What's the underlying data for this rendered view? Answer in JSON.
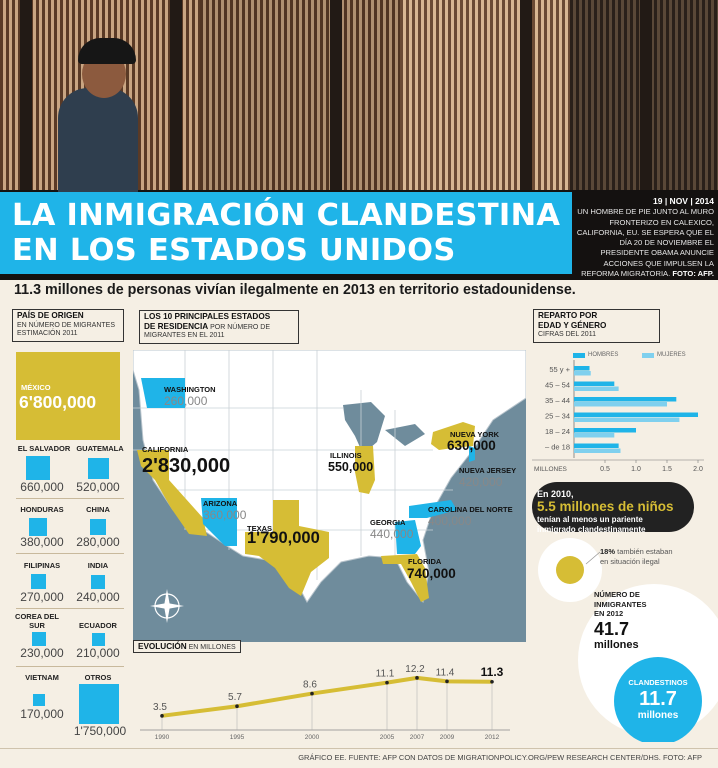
{
  "hero": {
    "title_line1": "LA INMIGRACIÓN CLANDESTINA",
    "title_line2": "EN LOS ESTADOS UNIDOS",
    "date": "19 | NOV | 2014",
    "caption": "UN HOMBRE DE PIE JUNTO AL MURO FRONTERIZO EN CALEXICO, CALIFORNIA, EU. SE ESPERA QUE EL DÍA 20 DE NOVIEMBRE EL PRESIDENTE OBAMA ANUNCIE ACCIONES QUE IMPULSEN LA REFORMA MIGRATORIA.",
    "caption_credit": "FOTO: AFP."
  },
  "headline": "11.3 millones de personas vivían ilegalmente en 2013 en territorio estadounidense.",
  "origin": {
    "title": "PAÍS DE ORIGEN",
    "subtitle_1": "EN NÚMERO DE MIGRANTES",
    "subtitle_2": "ESTIMACIÓN 2011",
    "mexico_label": "MÉXICO",
    "mexico_value": "6'800,000",
    "countries": [
      {
        "name": "EL SALVADOR",
        "value": "660,000"
      },
      {
        "name": "GUATEMALA",
        "value": "520,000"
      },
      {
        "name": "HONDURAS",
        "value": "380,000"
      },
      {
        "name": "CHINA",
        "value": "280,000"
      },
      {
        "name": "FILIPINAS",
        "value": "270,000"
      },
      {
        "name": "INDIA",
        "value": "240,000"
      },
      {
        "name": "COREA DEL SUR",
        "value": "230,000"
      },
      {
        "name": "ECUADOR",
        "value": "210,000"
      },
      {
        "name": "VIETNAM",
        "value": "170,000"
      },
      {
        "name": "OTROS",
        "value": "1'750,000"
      }
    ]
  },
  "states": {
    "title_1": "LOS 10 PRINCIPALES ESTADOS",
    "title_2": "DE RESIDENCIA",
    "subtitle_1": "POR NÚMERO DE",
    "subtitle_2": "MIGRANTES EN EL 2011",
    "items": [
      {
        "name": "WASHINGTON",
        "value": "260,000"
      },
      {
        "name": "CALIFORNIA",
        "value": "2'830,000"
      },
      {
        "name": "ARIZONA",
        "value": "360,000"
      },
      {
        "name": "TEXAS",
        "value": "1'790,000"
      },
      {
        "name": "ILLINOIS",
        "value": "550,000"
      },
      {
        "name": "NUEVA YORK",
        "value": "630,000"
      },
      {
        "name": "NUEVA JERSEY",
        "value": "420,000"
      },
      {
        "name": "CAROLINA DEL NORTE",
        "value": "400,000"
      },
      {
        "name": "GEORGIA",
        "value": "440,000"
      },
      {
        "name": "FLORIDA",
        "value": "740,000"
      }
    ]
  },
  "evolution": {
    "title": "EVOLUCIÓN",
    "unit": "EN MILLONES"
  },
  "age_gender": {
    "title_1": "REPARTO POR",
    "title_2": "EDAD Y GÉNERO",
    "subtitle": "CIFRAS DEL 2011",
    "legend_men": "HOMBRES",
    "legend_women": "MUJERES",
    "axis_label": "MILLONES"
  },
  "children": {
    "year": "En 2010,",
    "big": "5.5 millones de niños",
    "rest_1": "tenían al menos un pariente",
    "rest_2": "inmigrado clandestinamente",
    "pct": "18%",
    "pct_text_1": "también estaban",
    "pct_text_2": "en situación ilegal"
  },
  "immigrants": {
    "label_1": "NÚMERO DE",
    "label_2": "INMIGRANTES",
    "label_3": "EN  2012",
    "value": "41.7",
    "unit": "millones",
    "clandestine_label": "CLANDESTINOS",
    "clandestine_value": "11.7",
    "clandestine_unit": "millones"
  },
  "footer": "GRÁFICO EE. FUENTE: AFP CON DATOS DE MIGRATIONPOLICY.ORG/PEW RESEARCH CENTER/DHS. FOTO: AFP",
  "colors": {
    "blue": "#1fb4e8",
    "gold": "#d6bd35",
    "cream": "#f5efe4"
  },
  "chart_data": [
    {
      "type": "line",
      "x": [
        "1990",
        "1995",
        "2000",
        "2005",
        "2007",
        "2009",
        "2012"
      ],
      "values": [
        3.5,
        5.7,
        8.6,
        11.1,
        12.2,
        11.4,
        11.3
      ],
      "labels": [
        "3.5",
        "5.7",
        "8.6",
        "11.1",
        "12.2",
        "11.4",
        "11.3"
      ]
    },
    {
      "type": "bar",
      "categories": [
        "55 y +",
        "45 – 54",
        "35 – 44",
        "25 – 34",
        "18 – 24",
        "– de 18"
      ],
      "series": [
        {
          "name": "HOMBRES",
          "values": [
            0.25,
            0.65,
            1.65,
            2.0,
            1.0,
            0.72
          ]
        },
        {
          "name": "MUJERES",
          "values": [
            0.27,
            0.72,
            1.5,
            1.7,
            0.65,
            0.75
          ]
        }
      ],
      "xticks": [
        "0.5",
        "1.0",
        "1.5",
        "2.0"
      ],
      "xlim": [
        0,
        2.0
      ]
    }
  ]
}
